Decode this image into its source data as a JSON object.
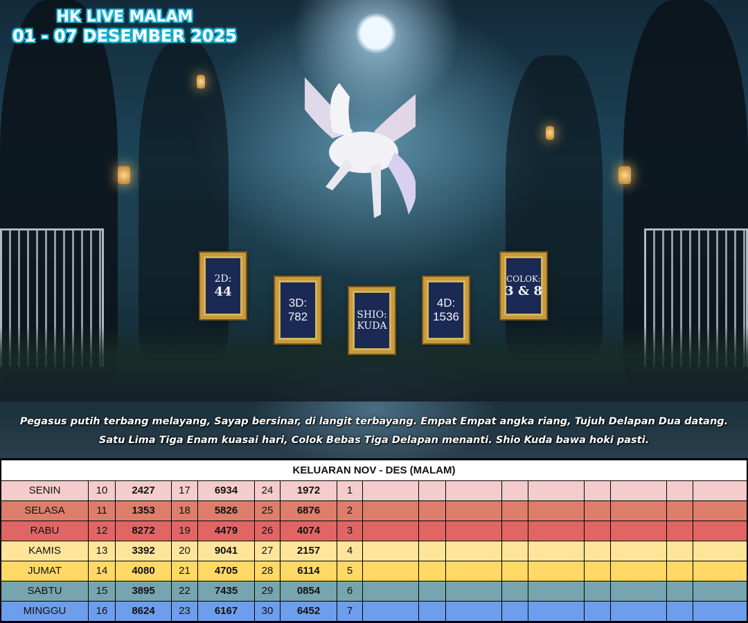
{
  "poster": {
    "title_line1": "HK LIVE MALAM",
    "title_line2": "01 - 07 DESEMBER 2025",
    "results": [
      {
        "label": "2D:",
        "value": "44"
      },
      {
        "label": "3D:",
        "value": "782"
      },
      {
        "label": "SHIO:",
        "value": "KUDA"
      },
      {
        "label": "4D:",
        "value": "1536"
      },
      {
        "label": "COLOK:",
        "value": "3 & 8"
      }
    ],
    "caption_line1": "Pegasus putih terbang melayang, Sayap bersinar, di langit terbayang. Empat Empat angka riang, Tujuh Delapan Dua datang.",
    "caption_line2": "Satu Lima Tiga Enam kuasai hari, Colok Bebas Tiga Delapan menanti. Shio Kuda bawa hoki pasti."
  },
  "table": {
    "header": "KELUARAN NOV - DES (MALAM)",
    "rows": [
      {
        "day": "SENIN",
        "color": "#f4cccc",
        "cells": [
          "10",
          "2427",
          "17",
          "6934",
          "24",
          "1972",
          "1"
        ]
      },
      {
        "day": "SELASA",
        "color": "#dd7e6b",
        "cells": [
          "11",
          "1353",
          "18",
          "5826",
          "25",
          "6876",
          "2"
        ]
      },
      {
        "day": "RABU",
        "color": "#e06666",
        "cells": [
          "12",
          "8272",
          "19",
          "4479",
          "26",
          "4074",
          "3"
        ]
      },
      {
        "day": "KAMIS",
        "color": "#ffe599",
        "cells": [
          "13",
          "3392",
          "20",
          "9041",
          "27",
          "2157",
          "4"
        ]
      },
      {
        "day": "JUMAT",
        "color": "#ffd966",
        "cells": [
          "14",
          "4080",
          "21",
          "4705",
          "28",
          "6114",
          "5"
        ]
      },
      {
        "day": "SABTU",
        "color": "#76a5af",
        "cells": [
          "15",
          "3895",
          "22",
          "7435",
          "29",
          "0854",
          "6"
        ]
      },
      {
        "day": "MINGGU",
        "color": "#6d9eeb",
        "cells": [
          "16",
          "8624",
          "23",
          "6167",
          "30",
          "6452",
          "7"
        ]
      }
    ]
  }
}
